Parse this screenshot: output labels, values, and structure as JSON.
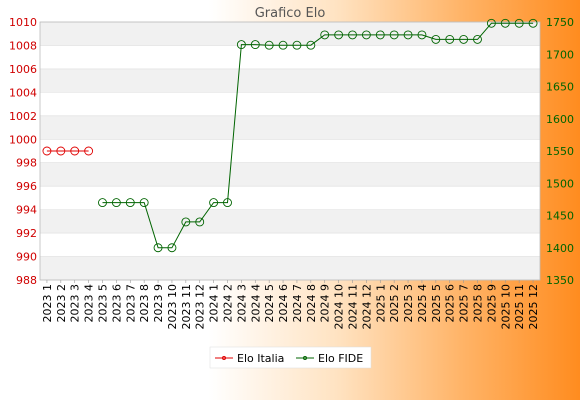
{
  "chart_data": {
    "type": "line",
    "title": "Grafico Elo",
    "categories": [
      "2023 1",
      "2023 2",
      "2023 3",
      "2023 4",
      "2023 5",
      "2023 6",
      "2023 7",
      "2023 8",
      "2023 9",
      "2023 10",
      "2023 11",
      "2023 12",
      "2024 1",
      "2024 2",
      "2024 3",
      "2024 4",
      "2024 5",
      "2024 6",
      "2024 7",
      "2024 8",
      "2024 9",
      "2024 10",
      "2024 11",
      "2024 12",
      "2025 1",
      "2025 2",
      "2025 3",
      "2025 4",
      "2025 5",
      "2025 6",
      "2025 7",
      "2025 8",
      "2025 9",
      "2025 10",
      "2025 11",
      "2025 12"
    ],
    "y_left": {
      "min": 988,
      "max": 1010,
      "ticks": [
        988,
        990,
        992,
        994,
        996,
        998,
        1000,
        1002,
        1004,
        1006,
        1008,
        1010
      ]
    },
    "y_right": {
      "min": 1350,
      "max": 1750,
      "ticks": [
        1350,
        1400,
        1450,
        1500,
        1550,
        1600,
        1650,
        1700,
        1750
      ]
    },
    "grid": true,
    "legend_position": "bottom",
    "series": [
      {
        "name": "Elo Italia",
        "axis": "left",
        "color": "#e00000",
        "values": [
          999,
          999,
          999,
          999,
          null,
          null,
          null,
          null,
          null,
          null,
          null,
          null,
          null,
          null,
          null,
          null,
          null,
          null,
          null,
          null,
          null,
          null,
          null,
          null,
          null,
          null,
          null,
          null,
          null,
          null,
          null,
          null,
          null,
          null,
          null,
          null
        ]
      },
      {
        "name": "Elo FIDE",
        "axis": "right",
        "color": "#006400",
        "values": [
          null,
          null,
          null,
          null,
          1470,
          1470,
          1470,
          1470,
          1400,
          1400,
          1440,
          1440,
          1470,
          1470,
          1715,
          1715,
          1714,
          1714,
          1714,
          1714,
          1730,
          1730,
          1730,
          1730,
          1730,
          1730,
          1730,
          1730,
          1723,
          1723,
          1723,
          1723,
          1748,
          1748,
          1748,
          1748
        ]
      }
    ]
  }
}
